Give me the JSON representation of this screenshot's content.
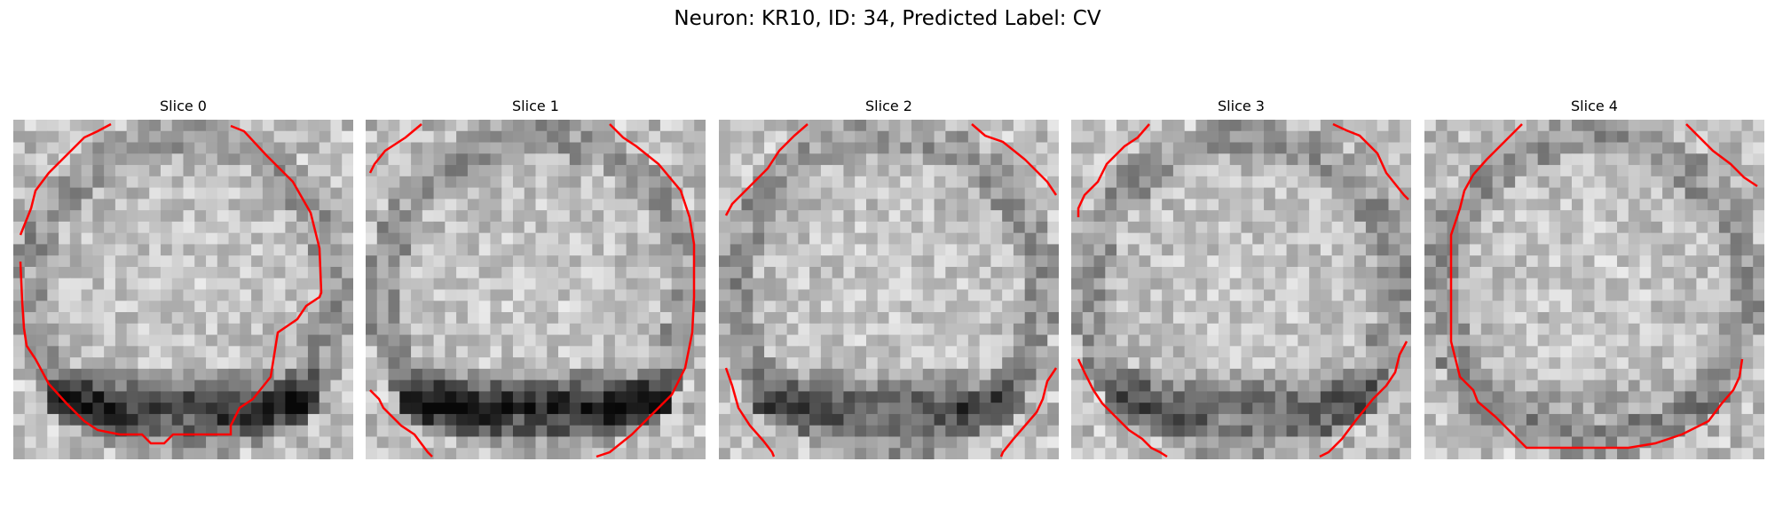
{
  "figure": {
    "title": "Neuron: KR10, ID: 34, Predicted Label: CV"
  },
  "panels": [
    {
      "title": "Slice 0",
      "dark_bottom_band": 0.55
    },
    {
      "title": "Slice 1",
      "dark_bottom_band": 0.65
    },
    {
      "title": "Slice 2",
      "dark_bottom_band": 0.4
    },
    {
      "title": "Slice 3",
      "dark_bottom_band": 0.35
    },
    {
      "title": "Slice 4",
      "dark_bottom_band": 0.1
    }
  ],
  "colors": {
    "contour": "#ff0000",
    "background": "#ffffff"
  },
  "image": {
    "colormap": "gray",
    "grid": 30
  }
}
